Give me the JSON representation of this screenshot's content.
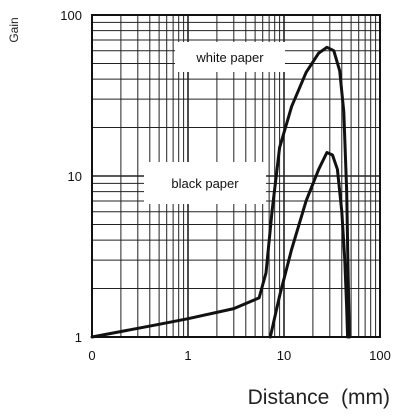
{
  "chart_data": {
    "type": "line",
    "title": "",
    "xlabel": "Distance  (mm)",
    "ylabel": "Gain",
    "x_scale": "log",
    "y_scale": "log",
    "xlim": [
      0.1,
      100
    ],
    "ylim": [
      1,
      100
    ],
    "x_tick_labels": [
      "0",
      "1",
      "10",
      "100"
    ],
    "y_tick_labels": [
      "1",
      "10",
      "100"
    ],
    "grid": true,
    "series": [
      {
        "name": "white paper",
        "points": [
          [
            0.1,
            1.0
          ],
          [
            0.5,
            1.2
          ],
          [
            1,
            1.3
          ],
          [
            3,
            1.5
          ],
          [
            5.5,
            1.75
          ],
          [
            6.5,
            2.5
          ],
          [
            7.5,
            6
          ],
          [
            9,
            15
          ],
          [
            12,
            27
          ],
          [
            17,
            44
          ],
          [
            23,
            58
          ],
          [
            28,
            63
          ],
          [
            33,
            60
          ],
          [
            38,
            45
          ],
          [
            42,
            25
          ],
          [
            45,
            8
          ],
          [
            46.5,
            2.5
          ],
          [
            48,
            1
          ]
        ]
      },
      {
        "name": "black paper",
        "points": [
          [
            7.2,
            1.0
          ],
          [
            9,
            1.8
          ],
          [
            12,
            3.5
          ],
          [
            17,
            7
          ],
          [
            23,
            11
          ],
          [
            28,
            14
          ],
          [
            32,
            13.5
          ],
          [
            36,
            11
          ],
          [
            40,
            6
          ],
          [
            43,
            3
          ],
          [
            45,
            1.5
          ],
          [
            46,
            1
          ]
        ]
      }
    ]
  }
}
